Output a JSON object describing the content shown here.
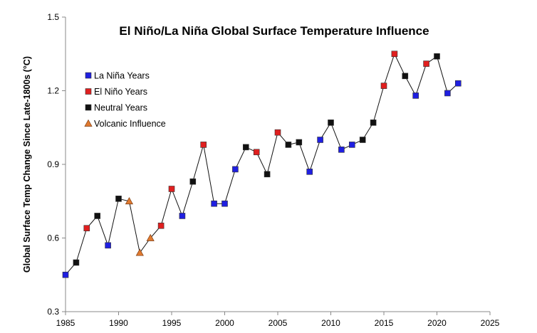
{
  "chart_data": {
    "type": "line",
    "title": "El Niño/La Niña Global Surface Temperature Influence",
    "xlabel": "",
    "ylabel": "Global Surface Temp Change Since Late-1800s (°C)",
    "xlim": [
      1985,
      2025
    ],
    "ylim": [
      0.3,
      1.5
    ],
    "xticks": [
      1985,
      1990,
      1995,
      2000,
      2005,
      2010,
      2015,
      2020,
      2025
    ],
    "yticks": [
      "0.3",
      "0.6",
      "0.9",
      "1.2",
      "1.5"
    ],
    "grid": false,
    "legend_placement": "top-left",
    "legend": [
      {
        "key": "lanina",
        "label": "La Niña Years",
        "color": "#1f1fe0",
        "marker": "square"
      },
      {
        "key": "elnino",
        "label": "El Niño Years",
        "color": "#e01f1f",
        "marker": "square"
      },
      {
        "key": "neutral",
        "label": "Neutral Years",
        "color": "#111111",
        "marker": "square"
      },
      {
        "key": "volcanic",
        "label": "Volcanic Influence",
        "color": "#e07a30",
        "marker": "triangle"
      }
    ],
    "points": [
      {
        "x": 1985,
        "y": 0.45,
        "type": "lanina"
      },
      {
        "x": 1986,
        "y": 0.5,
        "type": "neutral"
      },
      {
        "x": 1987,
        "y": 0.64,
        "type": "elnino"
      },
      {
        "x": 1988,
        "y": 0.69,
        "type": "neutral"
      },
      {
        "x": 1989,
        "y": 0.57,
        "type": "lanina"
      },
      {
        "x": 1990,
        "y": 0.76,
        "type": "neutral"
      },
      {
        "x": 1991,
        "y": 0.75,
        "type": "volcanic"
      },
      {
        "x": 1992,
        "y": 0.54,
        "type": "volcanic"
      },
      {
        "x": 1993,
        "y": 0.6,
        "type": "volcanic"
      },
      {
        "x": 1994,
        "y": 0.65,
        "type": "elnino"
      },
      {
        "x": 1995,
        "y": 0.8,
        "type": "elnino"
      },
      {
        "x": 1996,
        "y": 0.69,
        "type": "lanina"
      },
      {
        "x": 1997,
        "y": 0.83,
        "type": "neutral"
      },
      {
        "x": 1998,
        "y": 0.98,
        "type": "elnino"
      },
      {
        "x": 1999,
        "y": 0.74,
        "type": "lanina"
      },
      {
        "x": 2000,
        "y": 0.74,
        "type": "lanina"
      },
      {
        "x": 2001,
        "y": 0.88,
        "type": "lanina"
      },
      {
        "x": 2002,
        "y": 0.97,
        "type": "neutral"
      },
      {
        "x": 2003,
        "y": 0.95,
        "type": "elnino"
      },
      {
        "x": 2004,
        "y": 0.86,
        "type": "neutral"
      },
      {
        "x": 2005,
        "y": 1.03,
        "type": "elnino"
      },
      {
        "x": 2006,
        "y": 0.98,
        "type": "neutral"
      },
      {
        "x": 2007,
        "y": 0.99,
        "type": "neutral"
      },
      {
        "x": 2008,
        "y": 0.87,
        "type": "lanina"
      },
      {
        "x": 2009,
        "y": 1.0,
        "type": "lanina"
      },
      {
        "x": 2010,
        "y": 1.07,
        "type": "neutral"
      },
      {
        "x": 2011,
        "y": 0.96,
        "type": "lanina"
      },
      {
        "x": 2012,
        "y": 0.98,
        "type": "lanina"
      },
      {
        "x": 2013,
        "y": 1.0,
        "type": "neutral"
      },
      {
        "x": 2014,
        "y": 1.07,
        "type": "neutral"
      },
      {
        "x": 2015,
        "y": 1.22,
        "type": "elnino"
      },
      {
        "x": 2016,
        "y": 1.35,
        "type": "elnino"
      },
      {
        "x": 2017,
        "y": 1.26,
        "type": "neutral"
      },
      {
        "x": 2018,
        "y": 1.18,
        "type": "lanina"
      },
      {
        "x": 2019,
        "y": 1.31,
        "type": "elnino"
      },
      {
        "x": 2020,
        "y": 1.34,
        "type": "neutral"
      },
      {
        "x": 2021,
        "y": 1.19,
        "type": "lanina"
      },
      {
        "x": 2022,
        "y": 1.23,
        "type": "lanina"
      }
    ]
  }
}
